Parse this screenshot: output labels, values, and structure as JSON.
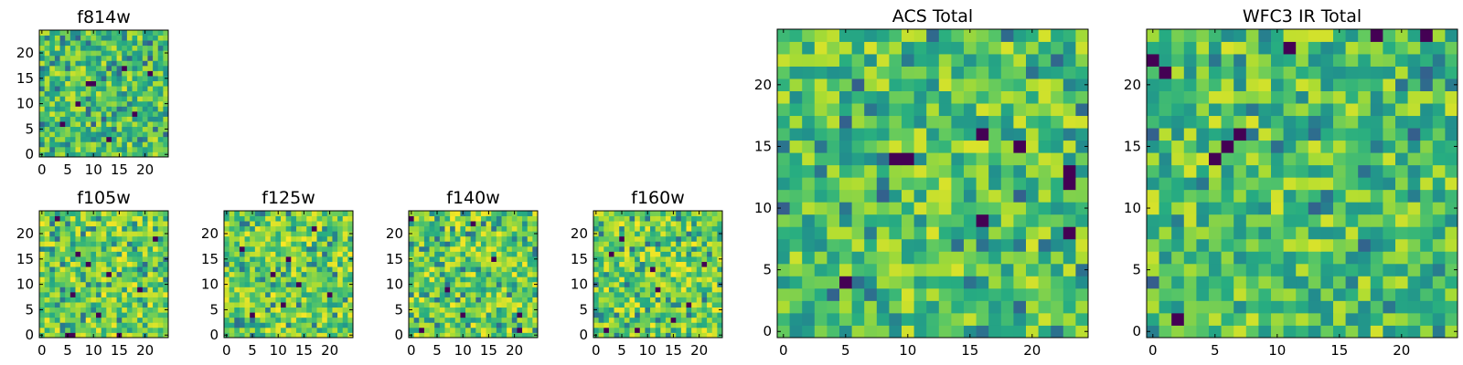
{
  "chart_data": [
    {
      "id": "f814w",
      "type": "heatmap",
      "title": "f814w",
      "grid_size": 25,
      "xlim": [
        0,
        24
      ],
      "ylim": [
        0,
        24
      ],
      "xticks": [
        0,
        5,
        10,
        15,
        20
      ],
      "yticks": [
        0,
        5,
        10,
        15,
        20
      ],
      "colormap": "viridis",
      "seed": 814,
      "style": "noise",
      "dark_pixels": [
        [
          9,
          14
        ],
        [
          10,
          14
        ],
        [
          16,
          17
        ],
        [
          21,
          16
        ],
        [
          4,
          6
        ],
        [
          13,
          3
        ],
        [
          7,
          10
        ],
        [
          18,
          8
        ]
      ]
    },
    {
      "id": "f105w",
      "type": "heatmap",
      "title": "f105w",
      "grid_size": 25,
      "xlim": [
        0,
        24
      ],
      "ylim": [
        0,
        24
      ],
      "xticks": [
        0,
        5,
        10,
        15,
        20
      ],
      "yticks": [
        0,
        5,
        10,
        15,
        20
      ],
      "colormap": "viridis",
      "seed": 105,
      "style": "bright",
      "dark_pixels": [
        [
          15,
          0
        ],
        [
          5,
          0
        ],
        [
          6,
          0
        ],
        [
          3,
          23
        ],
        [
          7,
          16
        ],
        [
          9,
          14
        ],
        [
          13,
          12
        ],
        [
          19,
          9
        ],
        [
          22,
          19
        ],
        [
          11,
          4
        ],
        [
          6,
          8
        ]
      ]
    },
    {
      "id": "f125w",
      "type": "heatmap",
      "title": "f125w",
      "grid_size": 25,
      "xlim": [
        0,
        24
      ],
      "ylim": [
        0,
        24
      ],
      "xticks": [
        0,
        5,
        10,
        15,
        20
      ],
      "yticks": [
        0,
        5,
        10,
        15,
        20
      ],
      "colormap": "viridis",
      "seed": 125,
      "style": "bright",
      "dark_pixels": [
        [
          9,
          12
        ],
        [
          11,
          6
        ],
        [
          14,
          10
        ],
        [
          17,
          21
        ],
        [
          5,
          4
        ],
        [
          20,
          8
        ],
        [
          3,
          17
        ],
        [
          12,
          15
        ]
      ]
    },
    {
      "id": "f140w",
      "type": "heatmap",
      "title": "f140w",
      "grid_size": 25,
      "xlim": [
        0,
        24
      ],
      "ylim": [
        0,
        24
      ],
      "xticks": [
        0,
        5,
        10,
        15,
        20
      ],
      "yticks": [
        0,
        5,
        10,
        15,
        20
      ],
      "colormap": "viridis",
      "seed": 140,
      "style": "bright",
      "dark_pixels": [
        [
          0,
          23
        ],
        [
          2,
          1
        ],
        [
          21,
          4
        ],
        [
          21,
          1
        ],
        [
          12,
          22
        ],
        [
          7,
          9
        ],
        [
          16,
          15
        ],
        [
          10,
          4
        ]
      ]
    },
    {
      "id": "f160w",
      "type": "heatmap",
      "title": "f160w",
      "grid_size": 25,
      "xlim": [
        0,
        24
      ],
      "ylim": [
        0,
        24
      ],
      "xticks": [
        0,
        5,
        10,
        15,
        20
      ],
      "yticks": [
        0,
        5,
        10,
        15,
        20
      ],
      "colormap": "viridis",
      "seed": 160,
      "style": "bright",
      "dark_pixels": [
        [
          11,
          13
        ],
        [
          5,
          19
        ],
        [
          2,
          1
        ],
        [
          3,
          16
        ],
        [
          12,
          9
        ],
        [
          8,
          1
        ],
        [
          18,
          6
        ],
        [
          21,
          14
        ],
        [
          15,
          3
        ]
      ]
    },
    {
      "id": "acs_total",
      "type": "heatmap",
      "title": "ACS Total",
      "grid_size": 25,
      "xlim": [
        0,
        24
      ],
      "ylim": [
        0,
        24
      ],
      "xticks": [
        0,
        5,
        10,
        15,
        20
      ],
      "yticks": [
        0,
        5,
        10,
        15,
        20
      ],
      "colormap": "viridis",
      "seed": 1001,
      "style": "noise",
      "dark_pixels": [
        [
          9,
          14
        ],
        [
          10,
          14
        ],
        [
          16,
          16
        ],
        [
          19,
          15
        ],
        [
          23,
          12
        ],
        [
          23,
          8
        ],
        [
          16,
          9
        ],
        [
          5,
          4
        ],
        [
          23,
          13
        ]
      ]
    },
    {
      "id": "wfc3_ir_total",
      "type": "heatmap",
      "title": "WFC3 IR Total",
      "grid_size": 25,
      "xlim": [
        0,
        24
      ],
      "ylim": [
        0,
        24
      ],
      "xticks": [
        0,
        5,
        10,
        15,
        20
      ],
      "yticks": [
        0,
        5,
        10,
        15,
        20
      ],
      "colormap": "viridis",
      "seed": 2002,
      "style": "noise",
      "dark_pixels": [
        [
          0,
          22
        ],
        [
          1,
          21
        ],
        [
          11,
          23
        ],
        [
          18,
          24
        ],
        [
          22,
          24
        ],
        [
          7,
          16
        ],
        [
          6,
          15
        ],
        [
          5,
          14
        ],
        [
          2,
          1
        ]
      ]
    }
  ]
}
